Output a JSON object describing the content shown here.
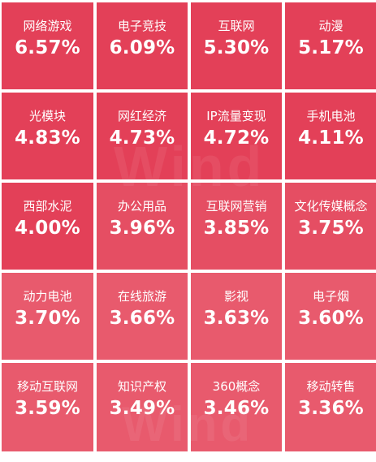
{
  "tiles": [
    {
      "name": "网络游戏",
      "value": "6.57%",
      "tier": "tier-1"
    },
    {
      "name": "电子竞技",
      "value": "6.09%",
      "tier": "tier-1"
    },
    {
      "name": "互联网",
      "value": "5.30%",
      "tier": "tier-1"
    },
    {
      "name": "动漫",
      "value": "5.17%",
      "tier": "tier-1"
    },
    {
      "name": "光模块",
      "value": "4.83%",
      "tier": "tier-1"
    },
    {
      "name": "网红经济",
      "value": "4.73%",
      "tier": "tier-1"
    },
    {
      "name": "IP流量变现",
      "value": "4.72%",
      "tier": "tier-1"
    },
    {
      "name": "手机电池",
      "value": "4.11%",
      "tier": "tier-1"
    },
    {
      "name": "西部水泥",
      "value": "4.00%",
      "tier": "tier-1"
    },
    {
      "name": "办公用品",
      "value": "3.96%",
      "tier": "tier-2"
    },
    {
      "name": "互联网营销",
      "value": "3.85%",
      "tier": "tier-2"
    },
    {
      "name": "文化传媒概念",
      "value": "3.75%",
      "tier": "tier-2"
    },
    {
      "name": "动力电池",
      "value": "3.70%",
      "tier": "tier-3"
    },
    {
      "name": "在线旅游",
      "value": "3.66%",
      "tier": "tier-3"
    },
    {
      "name": "影视",
      "value": "3.63%",
      "tier": "tier-3"
    },
    {
      "name": "电子烟",
      "value": "3.60%",
      "tier": "tier-3"
    },
    {
      "name": "移动互联网",
      "value": "3.59%",
      "tier": "tier-3"
    },
    {
      "name": "知识产权",
      "value": "3.49%",
      "tier": "tier-3"
    },
    {
      "name": "360概念",
      "value": "3.46%",
      "tier": "tier-3"
    },
    {
      "name": "移动转售",
      "value": "3.36%",
      "tier": "tier-3"
    }
  ],
  "watermark": {
    "text": "Wind"
  },
  "colors": {
    "tier-1": "#e34058",
    "tier-2": "#e54e63",
    "tier-3": "#e85a6d",
    "text": "#ffffff"
  }
}
